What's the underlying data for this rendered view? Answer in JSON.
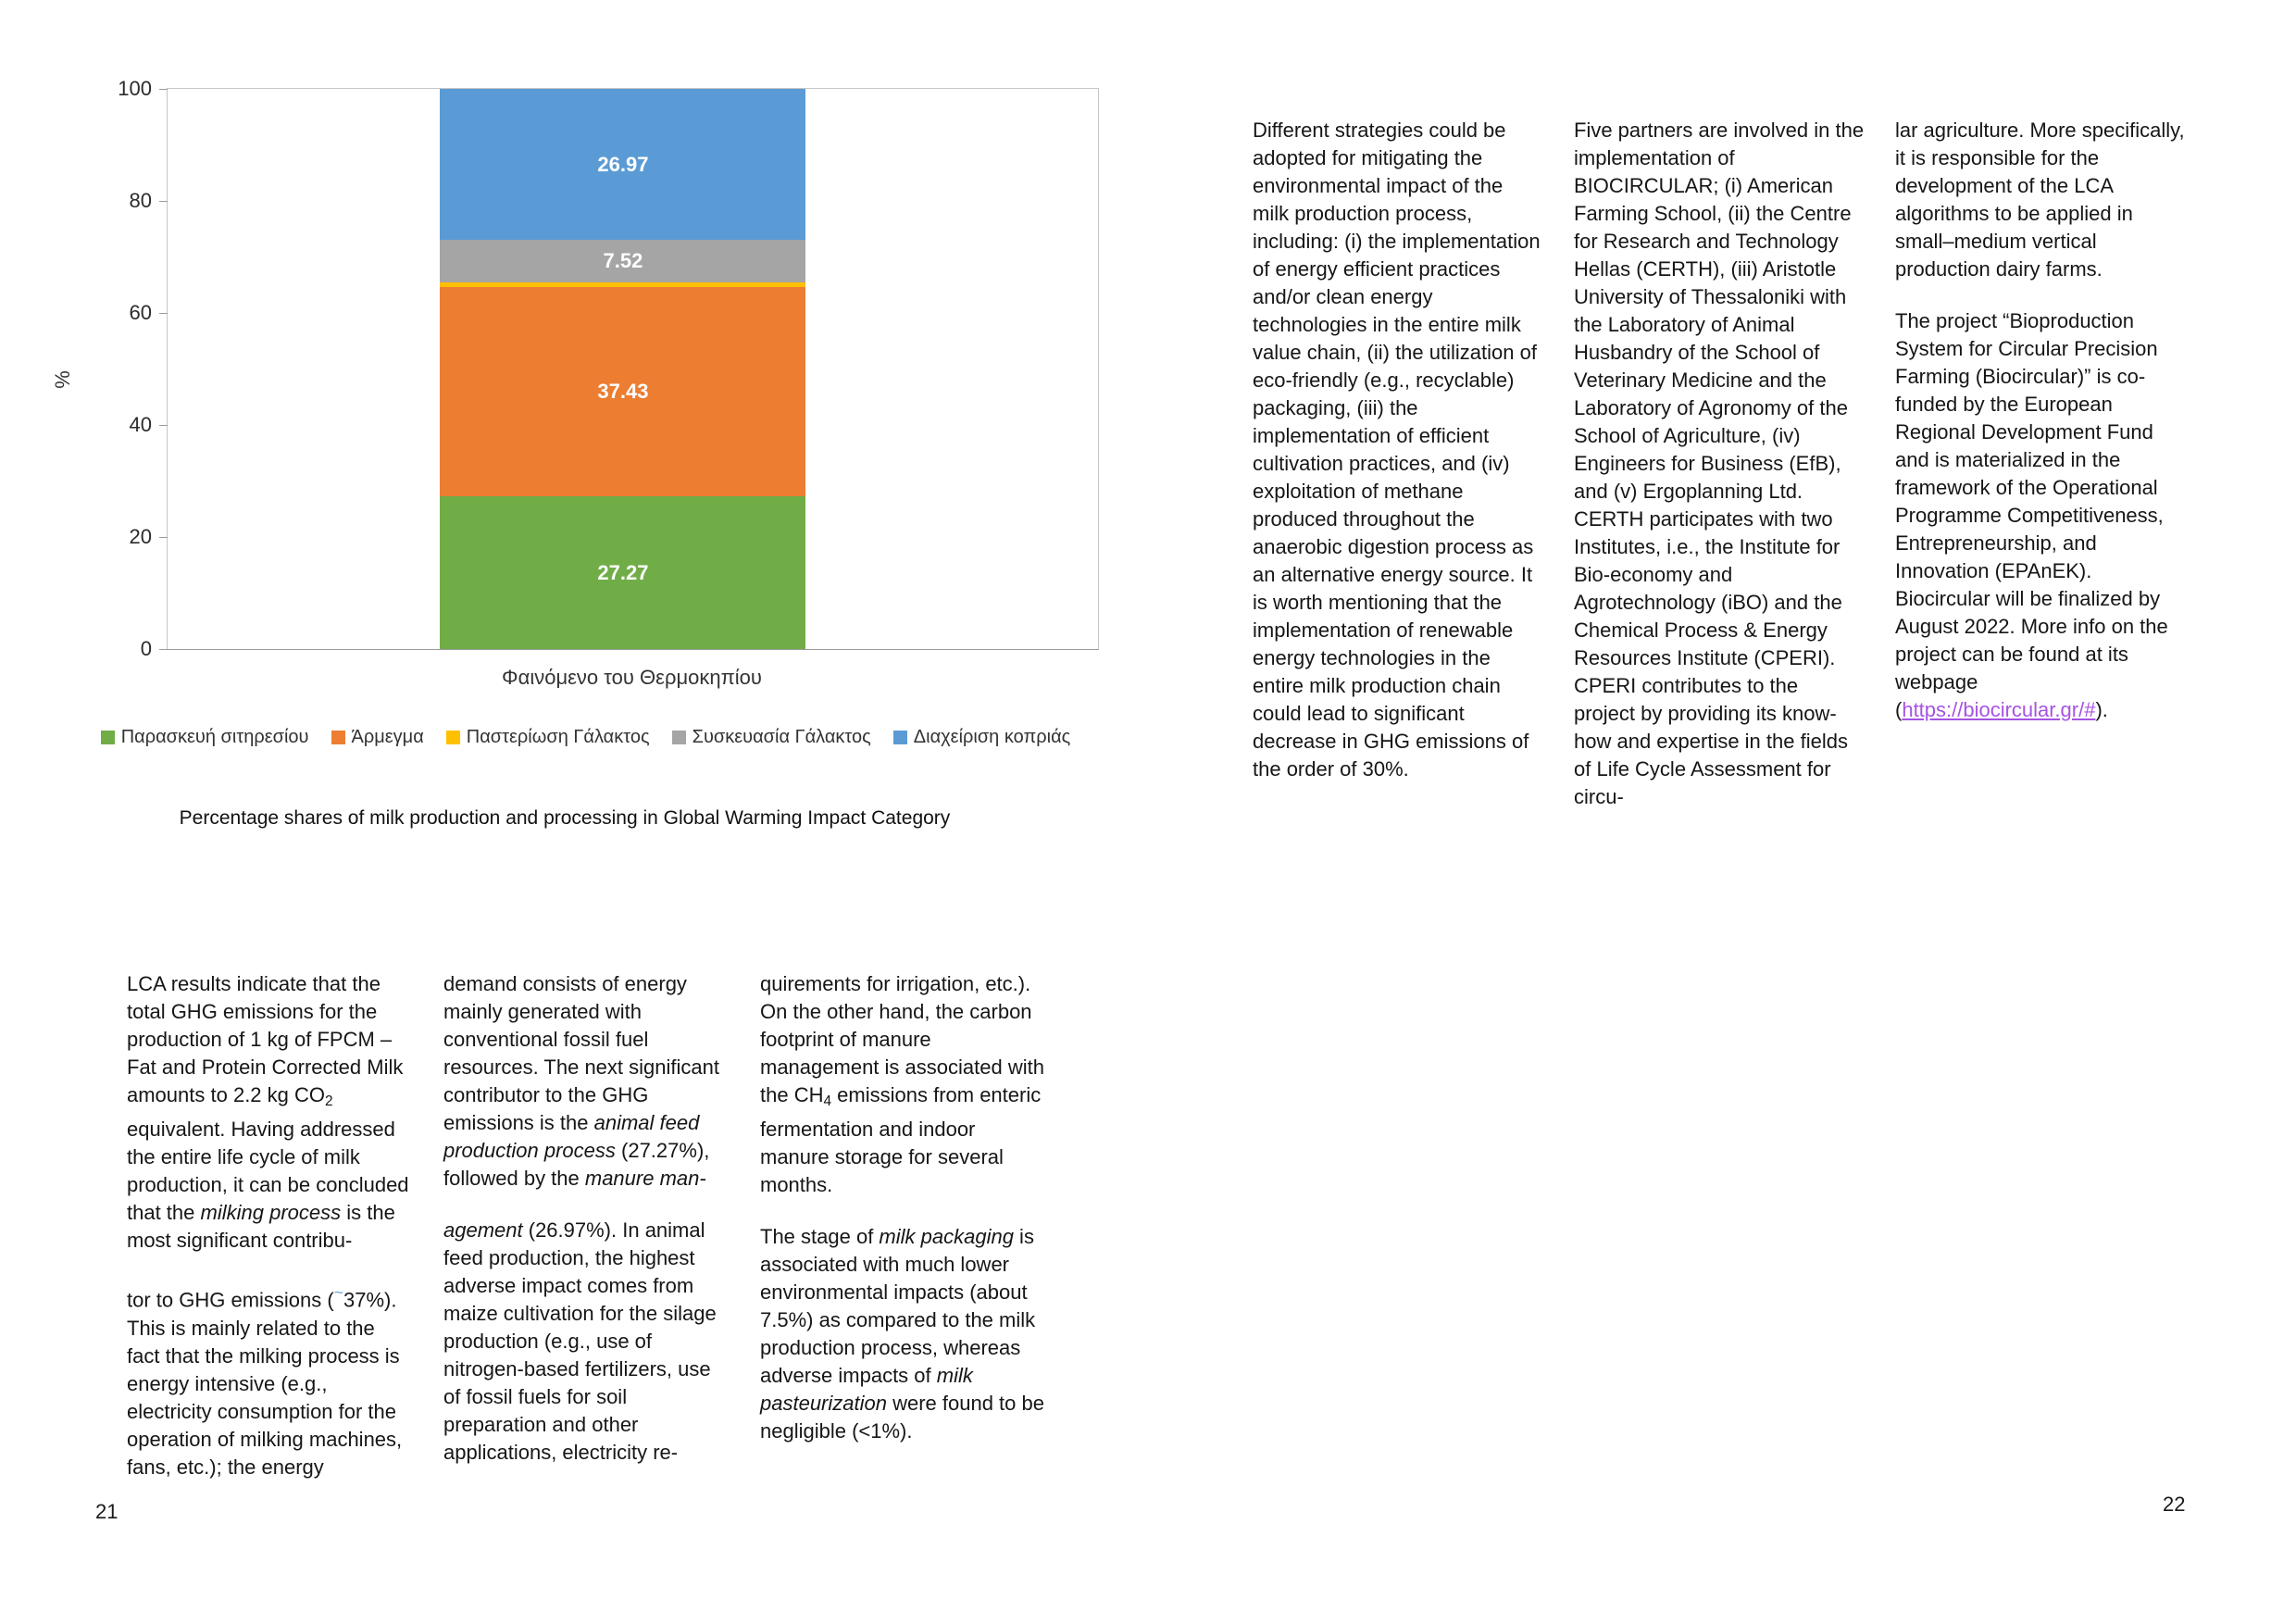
{
  "colors": {
    "link": "#A653E3",
    "tilde": "#6FA3DC"
  },
  "chart_data": {
    "type": "bar",
    "stacked": true,
    "categories": [
      "Φαινόμενο του Θερμοκηπίου"
    ],
    "series": [
      {
        "name": "Παρασκευή σιτηρεσίου",
        "color": "#70AD47",
        "value": 27.27,
        "label": "27.27"
      },
      {
        "name": "Άρμεγμα",
        "color": "#ED7D31",
        "value": 37.43,
        "label": "37.43"
      },
      {
        "name": "Παστερίωση Γάλακτος",
        "color": "#FFC000",
        "value": 0.81,
        "label": ""
      },
      {
        "name": "Συσκευασία Γάλακτος",
        "color": "#A5A5A5",
        "value": 7.52,
        "label": "7.52"
      },
      {
        "name": "Διαχείριση κοπριάς",
        "color": "#5B9BD5",
        "value": 26.97,
        "label": "26.97"
      }
    ],
    "title": "",
    "xlabel": "Φαινόμενο του Θερμοκηπίου",
    "ylabel": "%",
    "ylim": [
      0,
      100
    ],
    "yticks": [
      0,
      20,
      40,
      60,
      80,
      100
    ],
    "grid": false,
    "legend_position": "bottom"
  },
  "page_left": {
    "page_number": "21",
    "caption": "Percentage shares of milk production and processing in Global Warming Impact Category",
    "columns": [
      {
        "paras": [
          {
            "runs": [
              {
                "t": "LCA results indicate that the total GHG emissions for the production of 1 kg of FPCM – Fat and Protein Corrected Milk amounts to 2.2 kg CO"
              },
              {
                "t": "2",
                "s": "sub"
              },
              {
                "t": " equivalent. Having addressed the entire life cycle of milk production, it can be concluded that the "
              },
              {
                "t": "milking process",
                "s": "i"
              },
              {
                "t": " is the most significant contribu-"
              }
            ]
          },
          {
            "runs": [
              {
                "t": "tor to GHG emissions ("
              },
              {
                "t": "~",
                "s": "sup"
              },
              {
                "t": "37%). This is mainly related to the fact that the milking process is energy intensive (e.g., electricity consumption for the operation of milking machines, fans, etc.); the energy"
              }
            ]
          }
        ]
      },
      {
        "paras": [
          {
            "runs": [
              {
                "t": "demand consists of energy mainly generated with conventional fossil fuel resources. The next significant contributor to the GHG emissions is the "
              },
              {
                "t": "animal feed production process",
                "s": "i"
              },
              {
                "t": " (27.27%), followed by the "
              },
              {
                "t": "manure man-",
                "s": "i"
              }
            ]
          },
          {
            "runs": [
              {
                "t": "agement",
                "s": "i"
              },
              {
                "t": " (26.97%).  In animal feed production, the highest adverse impact comes from maize cultivation for the silage production (e.g., use of nitrogen-based fertilizers, use of fossil fuels for soil preparation and other applications, electricity re-"
              }
            ]
          }
        ]
      },
      {
        "paras": [
          {
            "runs": [
              {
                "t": "quirements for irrigation, etc.). On the other hand, the carbon footprint of manure management is associated with the CH"
              },
              {
                "t": "4",
                "s": "sub"
              },
              {
                "t": " emissions from enteric fermentation and indoor manure storage for several months."
              }
            ]
          },
          {
            "runs": [
              {
                "t": "The stage of "
              },
              {
                "t": "milk packaging",
                "s": "i"
              },
              {
                "t": " is associated with much lower environmental impacts (about 7.5%) as compared to the milk production process, whereas adverse impacts of "
              },
              {
                "t": "milk pasteurization",
                "s": "i"
              },
              {
                "t": " were found to be negligible (<1%)."
              }
            ]
          }
        ]
      }
    ]
  },
  "page_right": {
    "page_number": "22",
    "columns": [
      {
        "paras": [
          {
            "runs": [
              {
                "t": "Different strategies could be adopted for mitigating the environmental impact of the milk production process, including: (i) the implementation of energy efficient practices and/or clean energy technologies in the entire milk value chain, (ii) the utilization of eco-friendly (e.g., recyclable) packaging, (iii) the implementation of efficient cultivation practices, and (iv) exploitation of methane produced throughout the anaerobic digestion process as an alternative energy source. It is worth mentioning that the implementation of renewable energy technologies in the entire milk production chain could lead to significant decrease in GHG emissions of the order of 30%."
              }
            ]
          }
        ]
      },
      {
        "paras": [
          {
            "runs": [
              {
                "t": "Five partners are involved in the implementation of BIOCIRCULAR; (i) American Farming School, (ii) the Centre for Research and Technology Hellas (CERTH), (iii) Aristotle University of Thessaloniki with the Laboratory of Animal Husbandry of the School of Veterinary Medicine and the Laboratory of Agronomy of the School of Agriculture, (iv) Engineers for Business (EfB), and (v) Ergoplanning Ltd. CERTH participates with two Institutes, i.e., the Institute for Bio-economy and Agrotechnology (iBO) and the Chemical Process & Energy Resources Institute (CPERI). CPERI contributes to the project by providing its know-how and expertise in the fields of Life Cycle Assessment for circu-"
              }
            ]
          }
        ]
      },
      {
        "paras": [
          {
            "runs": [
              {
                "t": "lar agriculture. More specifically, it is responsible for the development of the LCA algorithms to be applied in small–medium vertical production dairy farms."
              }
            ]
          },
          {
            "runs": [
              {
                "t": "The project “Bioproduction System for Circular Precision Farming (Biocircular)” is co-funded by the European Regional Development Fund and is materialized in the framework of the Operational Programme Competitiveness, Entrepreneurship, and Innovation (EPAnEK). Biocircular will be finalized by August 2022. More info on the project can be found at its webpage ("
              },
              {
                "t": "https://biocircular.gr/#",
                "s": "link"
              },
              {
                "t": ")."
              }
            ]
          }
        ]
      }
    ]
  }
}
